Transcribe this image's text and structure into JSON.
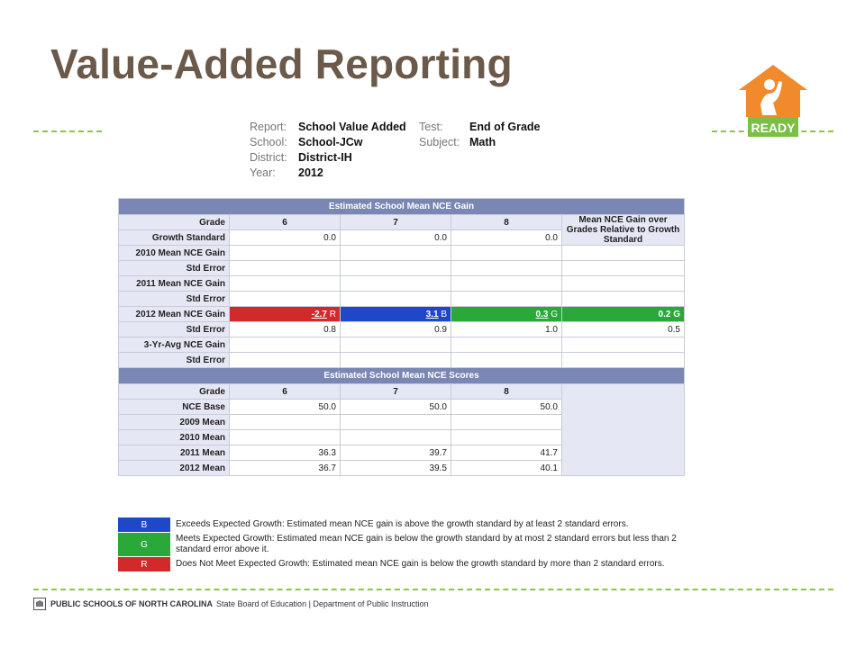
{
  "slide_title": "Value-Added Reporting",
  "logo": {
    "text": "READY",
    "color_orange": "#f08a2c",
    "color_green": "#7bbf44"
  },
  "report_meta": {
    "report_label": "Report:",
    "report_value": "School Value Added",
    "school_label": "School:",
    "school_value": "School-JCw",
    "district_label": "District:",
    "district_value": "District-IH",
    "year_label": "Year:",
    "year_value": "2012",
    "test_label": "Test:",
    "test_value": "End of Grade",
    "subject_label": "Subject:",
    "subject_value": "Math"
  },
  "gain_table": {
    "title": "Estimated School Mean NCE Gain",
    "grade_label": "Grade",
    "grades": [
      "6",
      "7",
      "8"
    ],
    "summary_header": "Mean NCE Gain over Grades Relative to Growth Standard",
    "rows": [
      {
        "label": "Growth Standard",
        "values": [
          "0.0",
          "0.0",
          "0.0"
        ],
        "summary": ""
      },
      {
        "label": "2010 Mean NCE Gain",
        "values": [
          "",
          "",
          ""
        ],
        "summary": ""
      },
      {
        "label": "Std Error",
        "values": [
          "",
          "",
          ""
        ],
        "summary": ""
      },
      {
        "label": "2011 Mean NCE Gain",
        "values": [
          "",
          "",
          ""
        ],
        "summary": ""
      },
      {
        "label": "Std Error",
        "values": [
          "",
          "",
          ""
        ],
        "summary": ""
      },
      {
        "label": "2012 Mean NCE Gain",
        "values": [
          "-2.7",
          "3.1",
          "0.3"
        ],
        "codes": [
          "R",
          "B",
          "G"
        ],
        "summary": "0.2 G"
      },
      {
        "label": "Std Error",
        "values": [
          "0.8",
          "0.9",
          "1.0"
        ],
        "summary": "0.5"
      },
      {
        "label": "3-Yr-Avg NCE Gain",
        "values": [
          "",
          "",
          ""
        ],
        "summary": ""
      },
      {
        "label": "Std Error",
        "values": [
          "",
          "",
          ""
        ],
        "summary": ""
      }
    ]
  },
  "scores_table": {
    "title": "Estimated School Mean NCE Scores",
    "grade_label": "Grade",
    "grades": [
      "6",
      "7",
      "8"
    ],
    "rows": [
      {
        "label": "NCE Base",
        "values": [
          "50.0",
          "50.0",
          "50.0"
        ]
      },
      {
        "label": "2009 Mean",
        "values": [
          "",
          "",
          ""
        ]
      },
      {
        "label": "2010 Mean",
        "values": [
          "",
          "",
          ""
        ]
      },
      {
        "label": "2011 Mean",
        "values": [
          "36.3",
          "39.7",
          "41.7"
        ]
      },
      {
        "label": "2012 Mean",
        "values": [
          "36.7",
          "39.5",
          "40.1"
        ]
      }
    ]
  },
  "legend": [
    {
      "code": "B",
      "color": "#1f48c8",
      "text": "Exceeds Expected Growth: Estimated mean NCE gain is above the growth standard by at least 2 standard errors."
    },
    {
      "code": "G",
      "color": "#2aa83a",
      "text": "Meets Expected Growth: Estimated mean NCE gain is below the growth standard by at most 2 standard errors but less than 2 standard error above it."
    },
    {
      "code": "R",
      "color": "#d22a2a",
      "text": "Does Not Meet Expected Growth: Estimated mean NCE gain is below the growth standard by more than 2 standard errors."
    }
  ],
  "footer": {
    "org": "PUBLIC SCHOOLS OF NORTH CAROLINA",
    "rest": "State Board of Education | Department of Public Instruction"
  }
}
